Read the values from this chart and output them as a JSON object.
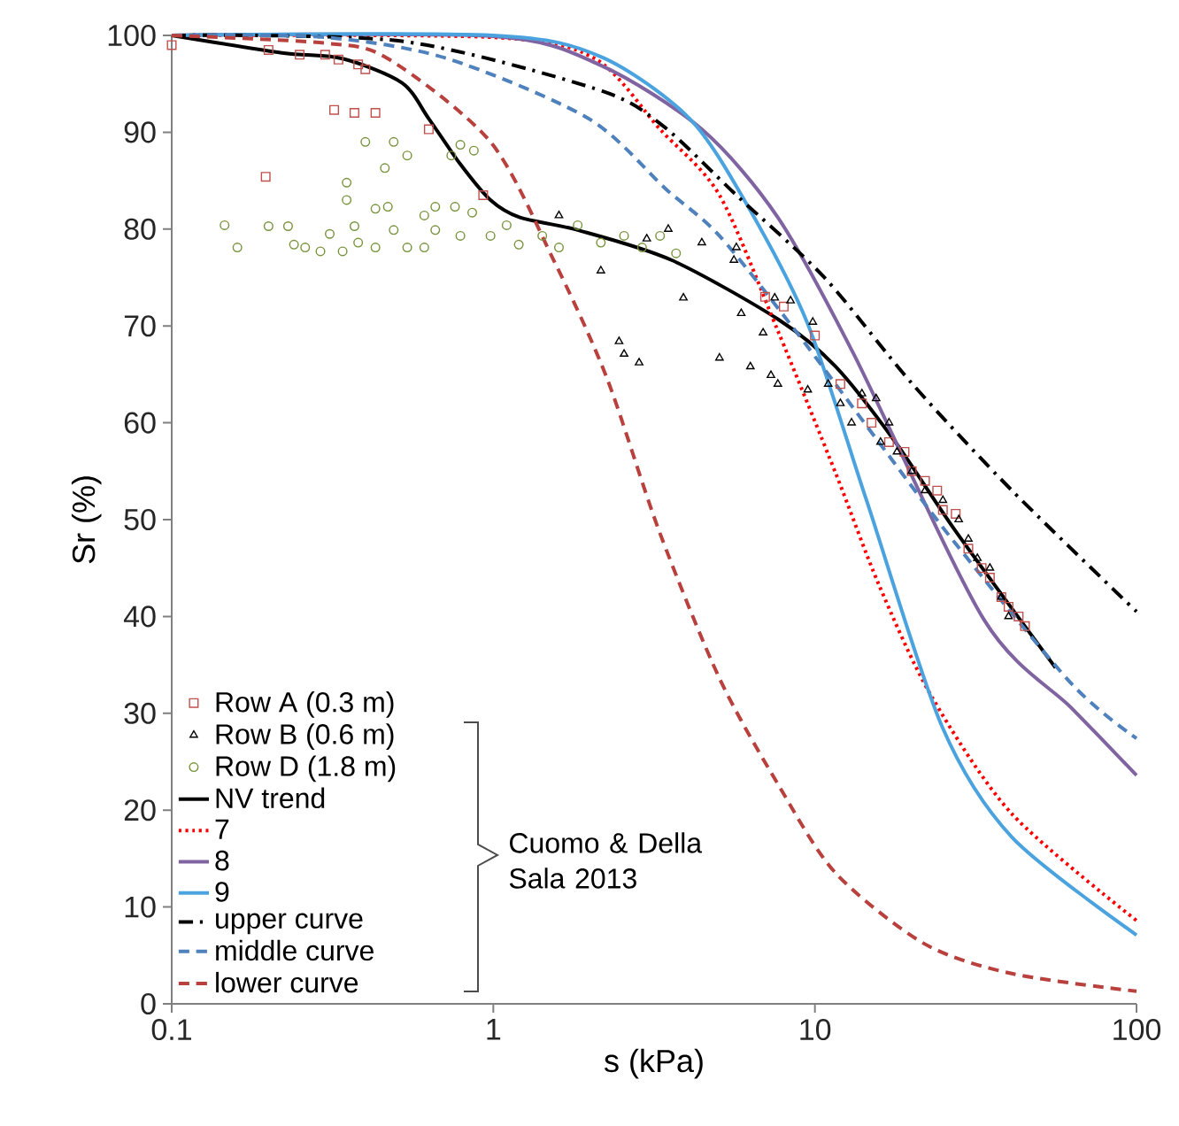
{
  "chart_data": {
    "type": "line",
    "xlabel": "s (kPa)",
    "ylabel": "Sr (%)",
    "log": "x",
    "xlim": [
      0.1,
      100
    ],
    "xticks": [
      0.1,
      1,
      10,
      100
    ],
    "ylim": [
      0,
      100
    ],
    "yticks": [
      0,
      10,
      20,
      30,
      40,
      50,
      60,
      70,
      80,
      90,
      100
    ],
    "grid": false,
    "legend": "bottom left",
    "annotations": [
      "Cuomo & Della Sala 2013"
    ],
    "series": [
      {
        "name": "Row A (0.3 m)",
        "type": "scatter",
        "marker": "square",
        "color": "#c0504d",
        "x": [
          0.1,
          0.2,
          0.25,
          0.3,
          0.33,
          0.38,
          0.4,
          0.32,
          0.37,
          0.43,
          0.196,
          0.63,
          0.93,
          7,
          8,
          10,
          12,
          14,
          15,
          17,
          19,
          20,
          22,
          24,
          25,
          27.4,
          30,
          33,
          35,
          38,
          40,
          43,
          45
        ],
        "values": [
          99,
          98.5,
          98,
          98,
          97.5,
          97,
          96.5,
          92.3,
          92,
          92,
          85.4,
          90.3,
          83.5,
          73,
          72,
          69,
          64,
          62,
          60,
          58,
          57,
          55,
          54,
          53,
          51,
          50.6,
          47,
          45,
          44,
          42,
          41,
          40,
          39
        ]
      },
      {
        "name": "Row B (0.6 m)",
        "type": "scatter",
        "marker": "triangle",
        "color": "#000000",
        "x": [
          1.6,
          2.16,
          2.46,
          2.55,
          2.84,
          3.0,
          3.5,
          3.9,
          4.45,
          5.7,
          5.6,
          5.05,
          5.9,
          6.3,
          6.9,
          7.3,
          7.5,
          7.67,
          8.4,
          9.5,
          9.85,
          11,
          12,
          13,
          14,
          15.5,
          16,
          17,
          18,
          20,
          22,
          25,
          28,
          30,
          32,
          35,
          38,
          40
        ],
        "values": [
          81.4,
          75.7,
          68.4,
          67.1,
          66.2,
          79,
          80,
          72.9,
          78.6,
          78.1,
          76.8,
          66.7,
          71.3,
          65.8,
          69.3,
          64.9,
          72.9,
          64,
          72.6,
          63.4,
          70.4,
          64,
          62,
          60,
          63,
          62.5,
          58,
          60,
          57,
          55,
          53,
          52,
          50,
          48,
          46,
          45,
          42,
          40
        ]
      },
      {
        "name": "Row D (1.8 m)",
        "type": "scatter",
        "marker": "circle",
        "color": "#77933c",
        "x": [
          0.146,
          0.16,
          0.2,
          0.23,
          0.24,
          0.26,
          0.29,
          0.31,
          0.34,
          0.37,
          0.38,
          0.43,
          0.49,
          0.54,
          0.61,
          0.66,
          0.76,
          0.86,
          0.79,
          0.66,
          0.61,
          0.98,
          1.1,
          1.2,
          1.42,
          1.6,
          1.83,
          2.16,
          2.55,
          2.9,
          3.3,
          3.7,
          0.4,
          0.49,
          0.54,
          0.46,
          0.79,
          0.87,
          0.74,
          0.35,
          0.35,
          0.43,
          0.47
        ],
        "values": [
          80.4,
          78.1,
          80.3,
          80.3,
          78.4,
          78.1,
          77.7,
          79.5,
          77.7,
          80.3,
          78.6,
          78.1,
          79.9,
          78.1,
          81.4,
          82.3,
          82.3,
          81.7,
          79.3,
          79.9,
          78.1,
          79.3,
          80.4,
          78.4,
          79.3,
          78.1,
          80.4,
          78.6,
          79.3,
          78.1,
          79.3,
          77.5,
          89,
          89,
          87.6,
          86.3,
          88.7,
          88.1,
          87.6,
          84.8,
          83,
          82.1,
          82.3
        ]
      },
      {
        "name": "NV trend",
        "line_style": "solid",
        "color": "#000000",
        "x": [
          0.1,
          0.22,
          0.34,
          0.52,
          0.63,
          0.79,
          0.98,
          1.21,
          1.83,
          3.58,
          7.67,
          11.6,
          17.8,
          27.4,
          56
        ],
        "values": [
          100,
          98.2,
          97.6,
          95.1,
          91.4,
          86.7,
          83,
          81.2,
          79.9,
          76.8,
          70.7,
          65.8,
          58,
          48.8,
          34.7
        ]
      },
      {
        "name": "7",
        "line_style": "dotted",
        "color": "#ff0000",
        "x": [
          0.1,
          1,
          2.07,
          3.3,
          5.05,
          7.67,
          11.6,
          15.8,
          23,
          41,
          100
        ],
        "values": [
          100,
          99.8,
          97.6,
          90.3,
          83.5,
          69.5,
          54.8,
          43.3,
          31.8,
          19.6,
          8.6
        ]
      },
      {
        "name": "8",
        "line_style": "solid",
        "color": "#8064a2",
        "x": [
          0.1,
          1,
          2.16,
          4.45,
          7.67,
          13.2,
          33.5,
          63,
          100
        ],
        "values": [
          100,
          99.9,
          96.9,
          90.3,
          81.2,
          67.1,
          39.7,
          30.5,
          23.6
        ]
      },
      {
        "name": "9",
        "line_style": "solid",
        "color": "#4aa3df",
        "x": [
          0.1,
          1,
          2.16,
          4.08,
          6.2,
          9.5,
          14.5,
          24.8,
          41,
          100
        ],
        "values": [
          100,
          100,
          97.8,
          91.4,
          82.3,
          70.2,
          51.9,
          28.7,
          17.2,
          7.1
        ]
      },
      {
        "name": "upper curve",
        "line_style": "dashdot",
        "color": "#000000",
        "x": [
          0.1,
          0.52,
          2.07,
          3.3,
          5.7,
          10.7,
          20.1,
          41,
          100
        ],
        "values": [
          100,
          99.4,
          94.5,
          90.9,
          83.5,
          75,
          64,
          53,
          40.5
        ]
      },
      {
        "name": "middle curve",
        "line_style": "dashed",
        "color": "#4f81bd",
        "x": [
          0.1,
          0.3,
          0.72,
          1.98,
          3.45,
          5.05,
          8.7,
          15.8,
          27.4,
          63,
          100
        ],
        "values": [
          100,
          99.8,
          97.6,
          91.4,
          84.1,
          79.3,
          69.5,
          58,
          47.5,
          33,
          27.4
        ]
      },
      {
        "name": "lower curve",
        "line_style": "dashed",
        "color": "#b8403d",
        "x": [
          0.1,
          0.3,
          0.47,
          0.98,
          1.54,
          2.25,
          3.28,
          5.05,
          7.67,
          11.6,
          21.9,
          41.2,
          100
        ],
        "values": [
          100,
          99.2,
          97.6,
          89,
          76.8,
          64.7,
          48.8,
          33.6,
          22.7,
          13.5,
          6.2,
          3.1,
          1.3
        ]
      }
    ]
  }
}
